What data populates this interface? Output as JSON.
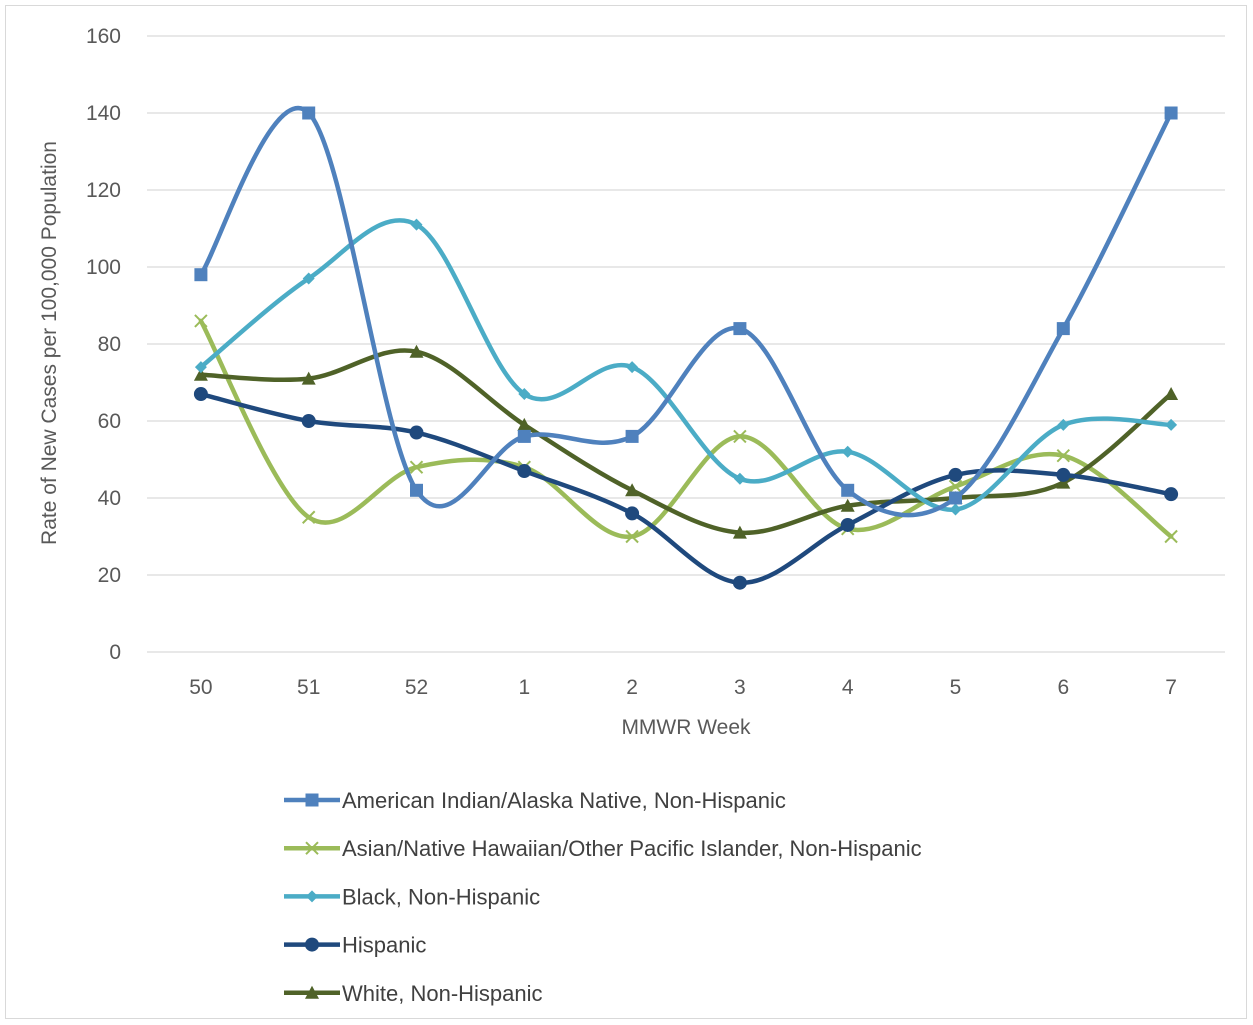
{
  "chart_data": {
    "type": "line",
    "title": "",
    "xlabel": "MMWR Week",
    "ylabel": "Rate of New Cases per 100,000 Population",
    "categories": [
      "50",
      "51",
      "52",
      "1",
      "2",
      "3",
      "4",
      "5",
      "6",
      "7"
    ],
    "ylim": [
      0,
      160
    ],
    "yticks": [
      0,
      20,
      40,
      60,
      80,
      100,
      120,
      140,
      160
    ],
    "grid": true,
    "legend_position": "bottom",
    "series": [
      {
        "name": "American Indian/Alaska Native, Non-Hispanic",
        "color": "#4f81bd",
        "marker": "square",
        "values": [
          98,
          140,
          42,
          56,
          56,
          84,
          42,
          40,
          84,
          140
        ]
      },
      {
        "name": "Asian/Native Hawaiian/Other Pacific Islander, Non-Hispanic",
        "color": "#9bbb59",
        "marker": "x",
        "values": [
          86,
          35,
          48,
          48,
          30,
          56,
          32,
          43,
          51,
          30
        ]
      },
      {
        "name": "Black, Non-Hispanic",
        "color": "#4bacc6",
        "marker": "diamond",
        "values": [
          74,
          97,
          111,
          67,
          74,
          45,
          52,
          37,
          59,
          59
        ]
      },
      {
        "name": "Hispanic",
        "color": "#1f497d",
        "marker": "circle",
        "values": [
          67,
          60,
          57,
          47,
          36,
          18,
          33,
          46,
          46,
          41
        ]
      },
      {
        "name": "White, Non-Hispanic",
        "color": "#4f6228",
        "marker": "triangle",
        "values": [
          72,
          71,
          78,
          59,
          42,
          31,
          38,
          40,
          44,
          67
        ]
      }
    ]
  }
}
